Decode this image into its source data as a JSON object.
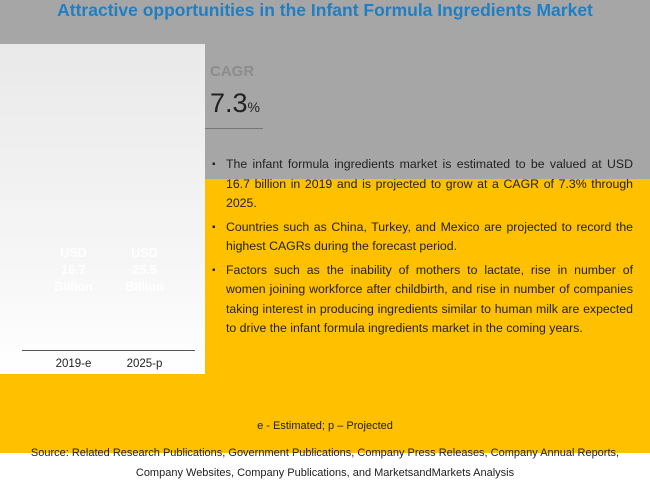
{
  "chart_data": {
    "type": "bar",
    "title": "Attractive opportunities in the Infant Formula Ingredients Market",
    "categories": [
      "2019-e",
      "2025-p"
    ],
    "values": [
      16.7,
      25.5
    ],
    "value_labels": [
      "USD 16.7 Billion",
      "USD 25.5 Billion"
    ],
    "colors": [
      "#a6a6a6",
      "#ffc000"
    ]
  },
  "cagr": {
    "label": "CAGR",
    "value": "7.3",
    "unit": "%"
  },
  "bullets": [
    "The infant formula ingredients market is estimated to be valued at USD 16.7 billion in 2019 and is projected to grow at a CAGR of 7.3% through 2025.",
    "Countries such as China, Turkey, and Mexico are projected to record the highest CAGRs during the forecast period.",
    "Factors such as the inability of mothers to lactate, rise in number of women joining workforce after childbirth, and rise in number of companies taking interest in producing ingredients similar to human milk are expected to drive the infant formula ingredients market in the coming years."
  ],
  "footnote": "e - Estimated; p – Projected",
  "source": "Source: Related Research Publications, Government Publications, Company Press Releases, Company Annual Reports, Company Websites, Company Publications, and MarketsandMarkets Analysis"
}
